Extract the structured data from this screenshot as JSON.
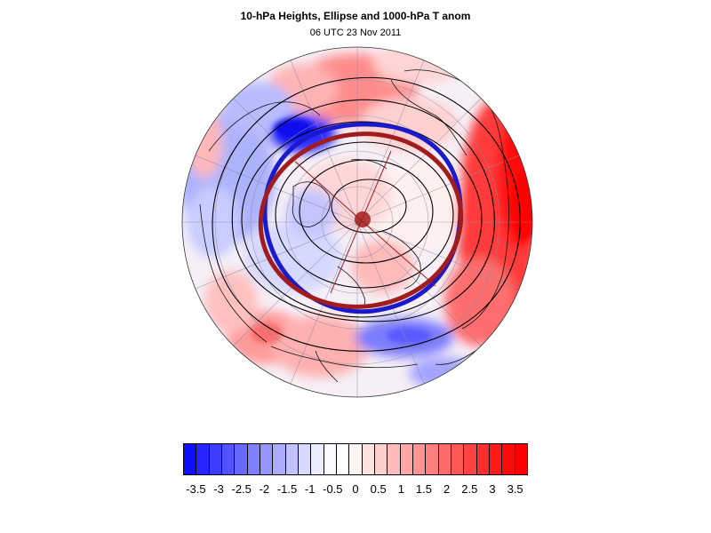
{
  "header": {
    "title": "10-hPa Heights, Ellipse and 1000-hPa T anom",
    "subtitle": "06 UTC 23 Nov 2011"
  },
  "colors": {
    "ellipse_red": "#a11d1d",
    "ellipse_blue": "#1a1acc",
    "contour": "#000000",
    "land_outline": "#111111"
  },
  "colorbar": {
    "labels": [
      "-3.5",
      "-3",
      "-2.5",
      "-2",
      "-1.5",
      "-1",
      "-0.5",
      "0",
      "0.5",
      "1",
      "1.5",
      "2",
      "2.5",
      "3",
      "3.5"
    ],
    "colors": [
      "#0f0fff",
      "#2525ff",
      "#3c3cff",
      "#5252ff",
      "#6868ff",
      "#7f7fff",
      "#9595ff",
      "#acacff",
      "#c2c2ff",
      "#d9d9ff",
      "#ececff",
      "#fafaff",
      "#ffffff",
      "#fff4f4",
      "#ffe2e2",
      "#ffcece",
      "#ffbaba",
      "#ffa6a6",
      "#ff9292",
      "#ff7e7e",
      "#ff6a6a",
      "#ff5656",
      "#ff4242",
      "#ff2e2e",
      "#ff1a1a",
      "#ff0a0a",
      "#ff0000"
    ]
  }
}
